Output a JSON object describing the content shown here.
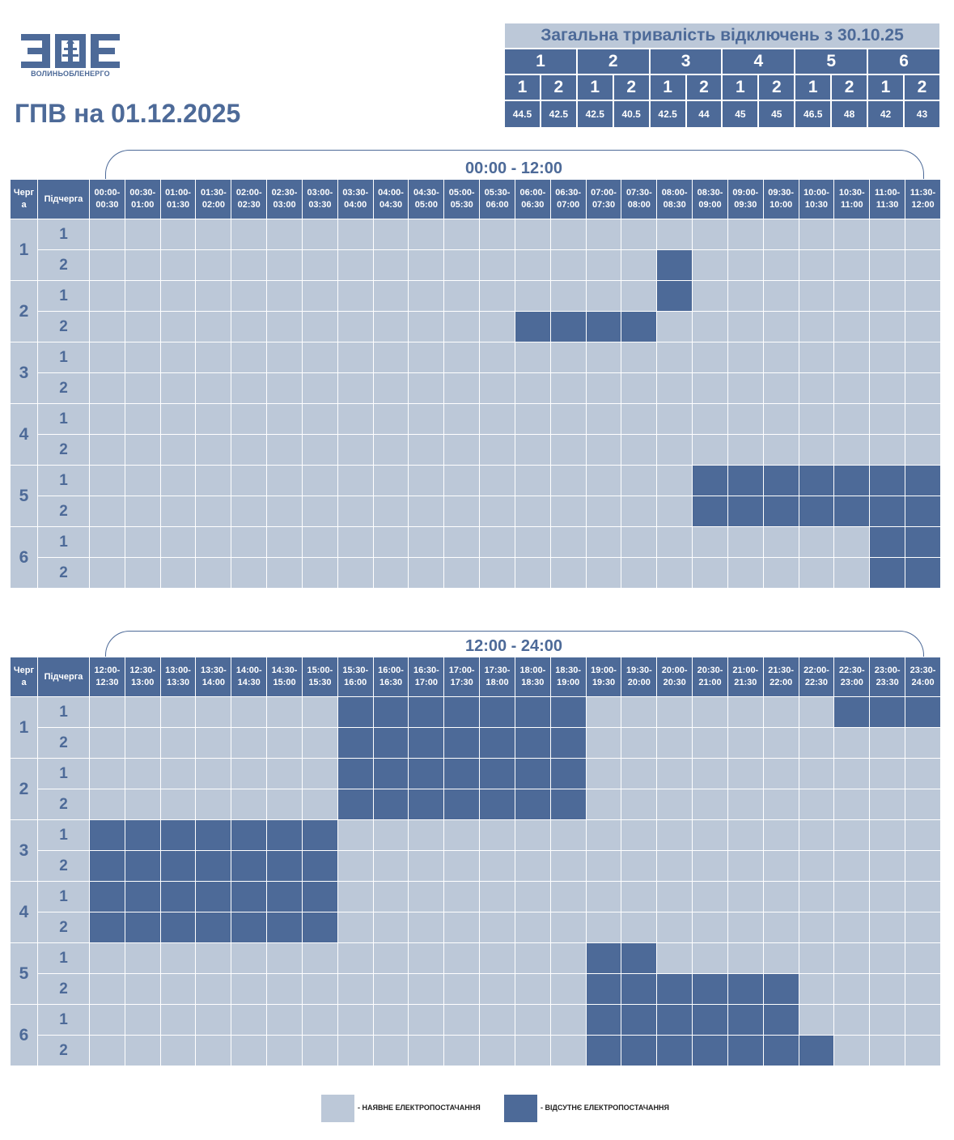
{
  "logo": {
    "letters": "ЗОЕ",
    "caption": "ВОЛИНЬОБЛЕНЕРГО"
  },
  "page_title": "ГПВ на 01.12.2025",
  "summary": {
    "title": "Загальна тривалість відключень з 30.10.25",
    "queues": [
      "1",
      "2",
      "3",
      "4",
      "5",
      "6"
    ],
    "subqueues": [
      "1",
      "2",
      "1",
      "2",
      "1",
      "2",
      "1",
      "2",
      "1",
      "2",
      "1",
      "2"
    ],
    "values": [
      "44.5",
      "42.5",
      "42.5",
      "40.5",
      "42.5",
      "44",
      "45",
      "45",
      "46.5",
      "48",
      "42",
      "43"
    ]
  },
  "headers": {
    "queue": "Черг\nа",
    "subqueue": "Підчерга"
  },
  "blocks": [
    {
      "period": "00:00 - 12:00",
      "slots": [
        "00:00-\n00:30",
        "00:30-\n01:00",
        "01:00-\n01:30",
        "01:30-\n02:00",
        "02:00-\n02:30",
        "02:30-\n03:00",
        "03:00-\n03:30",
        "03:30-\n04:00",
        "04:00-\n04:30",
        "04:30-\n05:00",
        "05:00-\n05:30",
        "05:30-\n06:00",
        "06:00-\n06:30",
        "06:30-\n07:00",
        "07:00-\n07:30",
        "07:30-\n08:00",
        "08:00-\n08:30",
        "08:30-\n09:00",
        "09:00-\n09:30",
        "09:30-\n10:00",
        "10:00-\n10:30",
        "10:30-\n11:00",
        "11:00-\n11:30",
        "11:30-\n12:00"
      ],
      "rows": [
        {
          "queue": "1",
          "sub": "1",
          "off": []
        },
        {
          "queue": "1",
          "sub": "2",
          "off": [
            16
          ]
        },
        {
          "queue": "2",
          "sub": "1",
          "off": [
            16
          ]
        },
        {
          "queue": "2",
          "sub": "2",
          "off": [
            12,
            13,
            14,
            15
          ]
        },
        {
          "queue": "3",
          "sub": "1",
          "off": []
        },
        {
          "queue": "3",
          "sub": "2",
          "off": []
        },
        {
          "queue": "4",
          "sub": "1",
          "off": []
        },
        {
          "queue": "4",
          "sub": "2",
          "off": []
        },
        {
          "queue": "5",
          "sub": "1",
          "off": [
            17,
            18,
            19,
            20,
            21,
            22,
            23
          ]
        },
        {
          "queue": "5",
          "sub": "2",
          "off": [
            17,
            18,
            19,
            20,
            21,
            22,
            23
          ]
        },
        {
          "queue": "6",
          "sub": "1",
          "off": [
            22,
            23
          ]
        },
        {
          "queue": "6",
          "sub": "2",
          "off": [
            22,
            23
          ]
        }
      ]
    },
    {
      "period": "12:00 - 24:00",
      "slots": [
        "12:00-\n12:30",
        "12:30-\n13:00",
        "13:00-\n13:30",
        "13:30-\n14:00",
        "14:00-\n14:30",
        "14:30-\n15:00",
        "15:00-\n15:30",
        "15:30-\n16:00",
        "16:00-\n16:30",
        "16:30-\n17:00",
        "17:00-\n17:30",
        "17:30-\n18:00",
        "18:00-\n18:30",
        "18:30-\n19:00",
        "19:00-\n19:30",
        "19:30-\n20:00",
        "20:00-\n20:30",
        "20:30-\n21:00",
        "21:00-\n21:30",
        "21:30-\n22:00",
        "22:00-\n22:30",
        "22:30-\n23:00",
        "23:00-\n23:30",
        "23:30-\n24:00"
      ],
      "rows": [
        {
          "queue": "1",
          "sub": "1",
          "off": [
            7,
            8,
            9,
            10,
            11,
            12,
            13,
            21,
            22,
            23
          ]
        },
        {
          "queue": "1",
          "sub": "2",
          "off": [
            7,
            8,
            9,
            10,
            11,
            12,
            13
          ]
        },
        {
          "queue": "2",
          "sub": "1",
          "off": [
            7,
            8,
            9,
            10,
            11,
            12,
            13
          ]
        },
        {
          "queue": "2",
          "sub": "2",
          "off": [
            7,
            8,
            9,
            10,
            11,
            12,
            13
          ]
        },
        {
          "queue": "3",
          "sub": "1",
          "off": [
            0,
            1,
            2,
            3,
            4,
            5,
            6
          ]
        },
        {
          "queue": "3",
          "sub": "2",
          "off": [
            0,
            1,
            2,
            3,
            4,
            5,
            6
          ]
        },
        {
          "queue": "4",
          "sub": "1",
          "off": [
            0,
            1,
            2,
            3,
            4,
            5,
            6
          ]
        },
        {
          "queue": "4",
          "sub": "2",
          "off": [
            0,
            1,
            2,
            3,
            4,
            5,
            6
          ]
        },
        {
          "queue": "5",
          "sub": "1",
          "off": [
            14,
            15
          ]
        },
        {
          "queue": "5",
          "sub": "2",
          "off": [
            14,
            15,
            16,
            17,
            18,
            19
          ]
        },
        {
          "queue": "6",
          "sub": "1",
          "off": [
            14,
            15,
            16,
            17,
            18,
            19
          ]
        },
        {
          "queue": "6",
          "sub": "2",
          "off": [
            14,
            15,
            16,
            17,
            18,
            19,
            20
          ]
        }
      ]
    }
  ],
  "legend": {
    "on_label": "- НАЯВНЕ ЕЛЕКТРОПОСТАЧАННЯ",
    "off_label": "- ВІДСУТНЄ ЕЛЕКТРОПОСТАЧАННЯ"
  },
  "colors": {
    "available": "#bcc8d8",
    "outage": "#4d6a98",
    "text": "#4d6a98"
  }
}
